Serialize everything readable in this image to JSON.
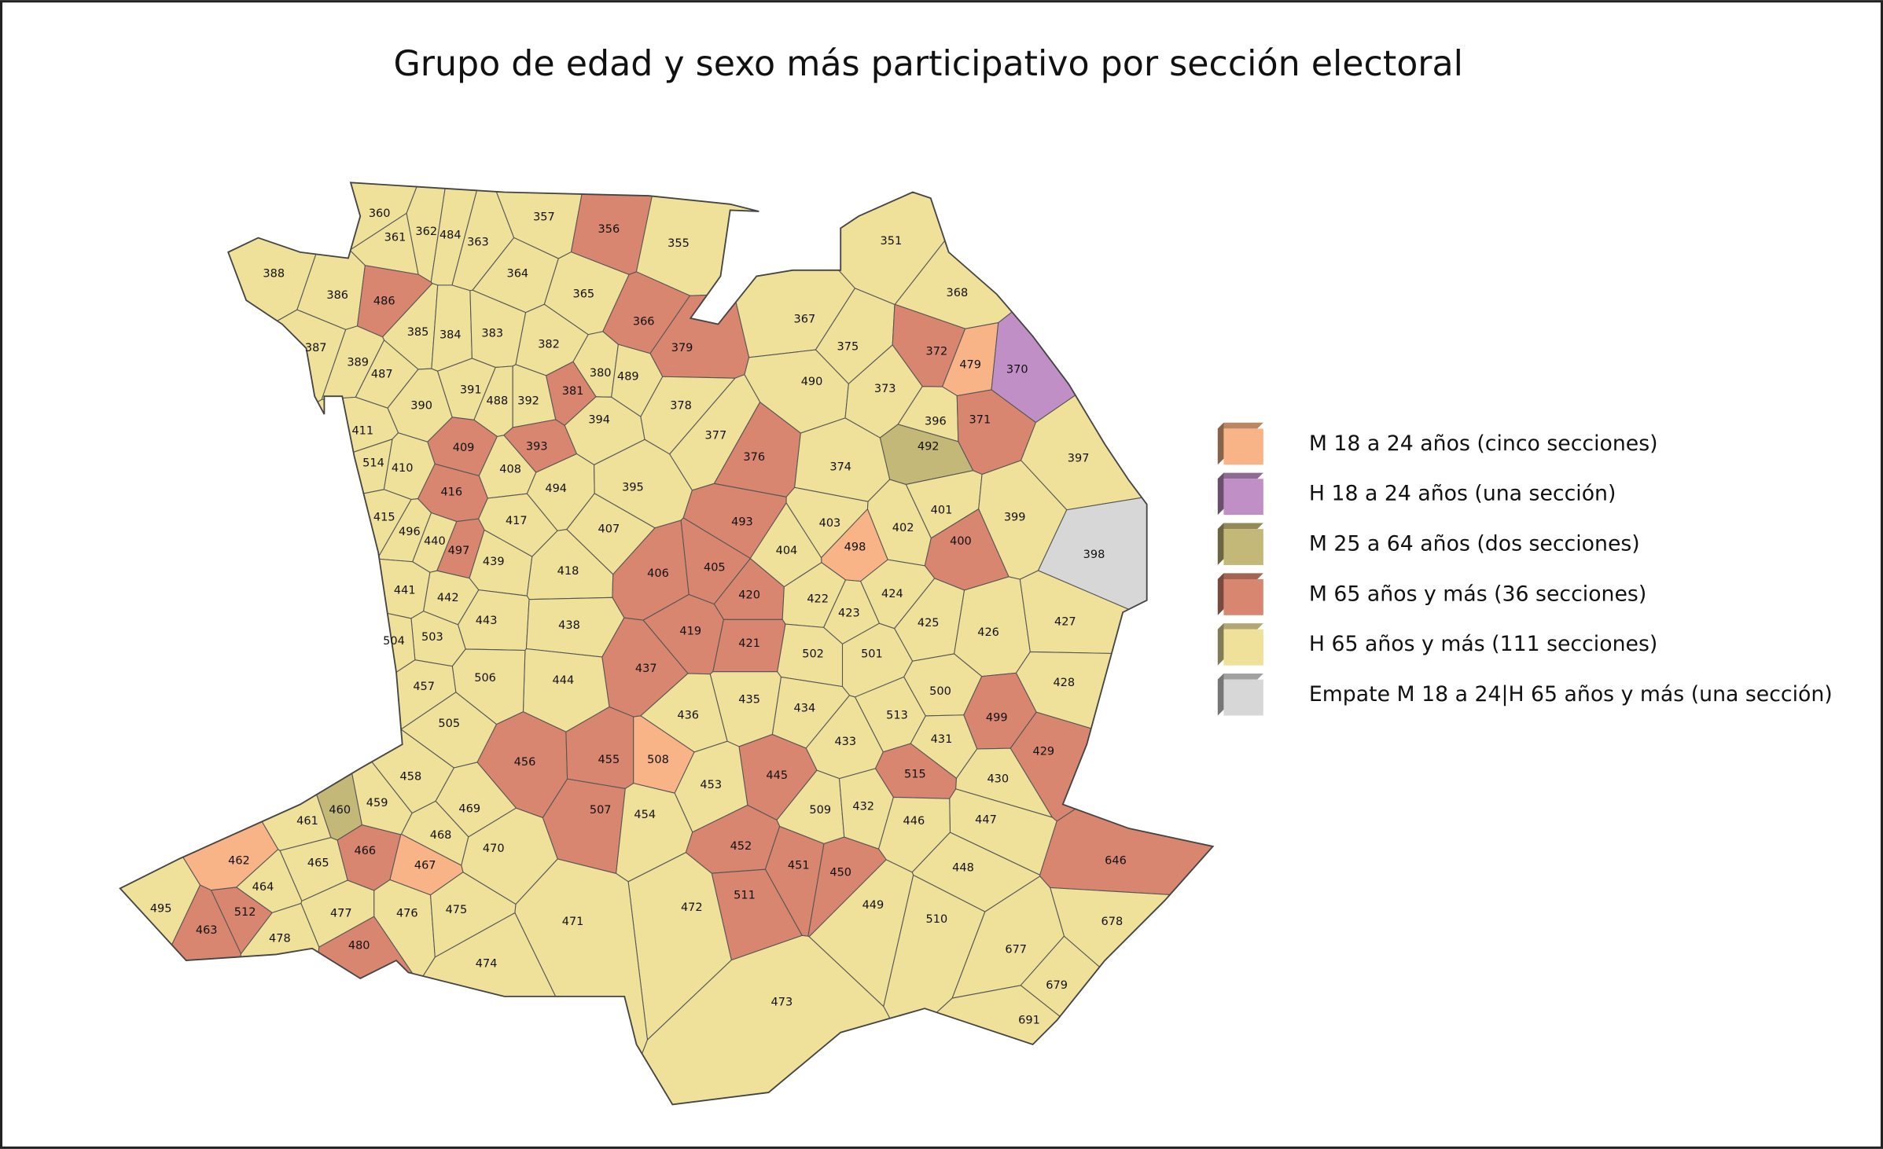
{
  "title": "Grupo de edad y sexo más participativo por sección electoral",
  "legend": [
    {
      "label": "M 18 a 24 años (cinco secciones)",
      "color": "#f8b486"
    },
    {
      "label": "H 18 a 24 años (una sección)",
      "color": "#bf8fc5"
    },
    {
      "label": "M 25 a 64 años (dos secciones)",
      "color": "#c3b878"
    },
    {
      "label": "M 65 años y más (36 secciones)",
      "color": "#d8866f"
    },
    {
      "label": "H 65 años y más (111 secciones)",
      "color": "#efe09a"
    },
    {
      "label": "Empate M 18 a 24|H 65 años y más (una sección)",
      "color": "#d7d7d7"
    }
  ],
  "sections": [
    {
      "label": "360",
      "group": 4
    },
    {
      "label": "361",
      "group": 4
    },
    {
      "label": "362",
      "group": 4
    },
    {
      "label": "484",
      "group": 4
    },
    {
      "label": "363",
      "group": 4
    },
    {
      "label": "357",
      "group": 4
    },
    {
      "label": "356",
      "group": 3
    },
    {
      "label": "355",
      "group": 4
    },
    {
      "label": "351",
      "group": 4
    },
    {
      "label": "388",
      "group": 4
    },
    {
      "label": "386",
      "group": 4
    },
    {
      "label": "486",
      "group": 3
    },
    {
      "label": "364",
      "group": 4
    },
    {
      "label": "365",
      "group": 4
    },
    {
      "label": "368",
      "group": 4
    },
    {
      "label": "366",
      "group": 3
    },
    {
      "label": "367",
      "group": 4
    },
    {
      "label": "387",
      "group": 4
    },
    {
      "label": "385",
      "group": 4
    },
    {
      "label": "384",
      "group": 4
    },
    {
      "label": "383",
      "group": 4
    },
    {
      "label": "382",
      "group": 4
    },
    {
      "label": "379",
      "group": 3
    },
    {
      "label": "375",
      "group": 4
    },
    {
      "label": "372",
      "group": 3
    },
    {
      "label": "479",
      "group": 0
    },
    {
      "label": "370",
      "group": 1
    },
    {
      "label": "389",
      "group": 4
    },
    {
      "label": "487",
      "group": 4
    },
    {
      "label": "380",
      "group": 4
    },
    {
      "label": "489",
      "group": 4
    },
    {
      "label": "490",
      "group": 4
    },
    {
      "label": "373",
      "group": 4
    },
    {
      "label": "390",
      "group": 4
    },
    {
      "label": "391",
      "group": 4
    },
    {
      "label": "488",
      "group": 4
    },
    {
      "label": "392",
      "group": 4
    },
    {
      "label": "381",
      "group": 3
    },
    {
      "label": "394",
      "group": 4
    },
    {
      "label": "378",
      "group": 4
    },
    {
      "label": "396",
      "group": 4
    },
    {
      "label": "371",
      "group": 3
    },
    {
      "label": "411",
      "group": 4
    },
    {
      "label": "377",
      "group": 4
    },
    {
      "label": "409",
      "group": 3
    },
    {
      "label": "393",
      "group": 3
    },
    {
      "label": "492",
      "group": 2
    },
    {
      "label": "397",
      "group": 4
    },
    {
      "label": "514",
      "group": 4
    },
    {
      "label": "410",
      "group": 4
    },
    {
      "label": "408",
      "group": 4
    },
    {
      "label": "376",
      "group": 3
    },
    {
      "label": "374",
      "group": 4
    },
    {
      "label": "494",
      "group": 4
    },
    {
      "label": "395",
      "group": 4
    },
    {
      "label": "416",
      "group": 3
    },
    {
      "label": "401",
      "group": 4
    },
    {
      "label": "399",
      "group": 4
    },
    {
      "label": "415",
      "group": 4
    },
    {
      "label": "417",
      "group": 4
    },
    {
      "label": "493",
      "group": 3
    },
    {
      "label": "403",
      "group": 4
    },
    {
      "label": "402",
      "group": 4
    },
    {
      "label": "496",
      "group": 4
    },
    {
      "label": "440",
      "group": 4
    },
    {
      "label": "407",
      "group": 4
    },
    {
      "label": "400",
      "group": 3
    },
    {
      "label": "498",
      "group": 0
    },
    {
      "label": "404",
      "group": 4
    },
    {
      "label": "398",
      "group": 5
    },
    {
      "label": "497",
      "group": 3
    },
    {
      "label": "439",
      "group": 4
    },
    {
      "label": "405",
      "group": 3
    },
    {
      "label": "418",
      "group": 4
    },
    {
      "label": "406",
      "group": 3
    },
    {
      "label": "441",
      "group": 4
    },
    {
      "label": "442",
      "group": 4
    },
    {
      "label": "420",
      "group": 3
    },
    {
      "label": "422",
      "group": 4
    },
    {
      "label": "424",
      "group": 4
    },
    {
      "label": "423",
      "group": 4
    },
    {
      "label": "443",
      "group": 4
    },
    {
      "label": "425",
      "group": 4
    },
    {
      "label": "426",
      "group": 4
    },
    {
      "label": "427",
      "group": 4
    },
    {
      "label": "503",
      "group": 4
    },
    {
      "label": "504",
      "group": 4
    },
    {
      "label": "419",
      "group": 3
    },
    {
      "label": "438",
      "group": 4
    },
    {
      "label": "421",
      "group": 3
    },
    {
      "label": "501",
      "group": 4
    },
    {
      "label": "502",
      "group": 4
    },
    {
      "label": "437",
      "group": 3
    },
    {
      "label": "444",
      "group": 4
    },
    {
      "label": "506",
      "group": 4
    },
    {
      "label": "457",
      "group": 4
    },
    {
      "label": "428",
      "group": 4
    },
    {
      "label": "500",
      "group": 4
    },
    {
      "label": "435",
      "group": 4
    },
    {
      "label": "434",
      "group": 4
    },
    {
      "label": "436",
      "group": 4
    },
    {
      "label": "513",
      "group": 4
    },
    {
      "label": "505",
      "group": 4
    },
    {
      "label": "499",
      "group": 3
    },
    {
      "label": "431",
      "group": 4
    },
    {
      "label": "433",
      "group": 4
    },
    {
      "label": "429",
      "group": 3
    },
    {
      "label": "456",
      "group": 3
    },
    {
      "label": "455",
      "group": 3
    },
    {
      "label": "508",
      "group": 0
    },
    {
      "label": "445",
      "group": 3
    },
    {
      "label": "458",
      "group": 4
    },
    {
      "label": "515",
      "group": 3
    },
    {
      "label": "430",
      "group": 4
    },
    {
      "label": "453",
      "group": 4
    },
    {
      "label": "460",
      "group": 2
    },
    {
      "label": "459",
      "group": 4
    },
    {
      "label": "469",
      "group": 4
    },
    {
      "label": "507",
      "group": 3
    },
    {
      "label": "509",
      "group": 4
    },
    {
      "label": "432",
      "group": 4
    },
    {
      "label": "454",
      "group": 4
    },
    {
      "label": "461",
      "group": 4
    },
    {
      "label": "447",
      "group": 4
    },
    {
      "label": "446",
      "group": 4
    },
    {
      "label": "468",
      "group": 4
    },
    {
      "label": "452",
      "group": 3
    },
    {
      "label": "470",
      "group": 4
    },
    {
      "label": "466",
      "group": 3
    },
    {
      "label": "462",
      "group": 0
    },
    {
      "label": "465",
      "group": 4
    },
    {
      "label": "467",
      "group": 0
    },
    {
      "label": "451",
      "group": 3
    },
    {
      "label": "448",
      "group": 4
    },
    {
      "label": "646",
      "group": 3
    },
    {
      "label": "450",
      "group": 3
    },
    {
      "label": "464",
      "group": 4
    },
    {
      "label": "511",
      "group": 3
    },
    {
      "label": "449",
      "group": 4
    },
    {
      "label": "495",
      "group": 4
    },
    {
      "label": "512",
      "group": 3
    },
    {
      "label": "472",
      "group": 4
    },
    {
      "label": "477",
      "group": 4
    },
    {
      "label": "476",
      "group": 4
    },
    {
      "label": "475",
      "group": 4
    },
    {
      "label": "471",
      "group": 4
    },
    {
      "label": "510",
      "group": 4
    },
    {
      "label": "678",
      "group": 4
    },
    {
      "label": "463",
      "group": 3
    },
    {
      "label": "478",
      "group": 4
    },
    {
      "label": "480",
      "group": 3
    },
    {
      "label": "677",
      "group": 4
    },
    {
      "label": "474",
      "group": 4
    },
    {
      "label": "679",
      "group": 4
    },
    {
      "label": "473",
      "group": 4
    },
    {
      "label": "691",
      "group": 4
    }
  ]
}
